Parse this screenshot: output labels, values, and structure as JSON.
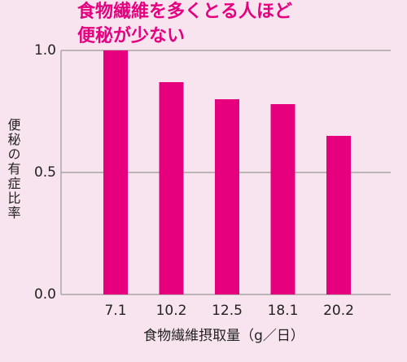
{
  "chart_data": {
    "type": "bar",
    "title": [
      "食物繊維を多くとる人ほど",
      "便秘が少ない"
    ],
    "y_label": "便秘の有症比率",
    "x_label": "食物繊維摂取量（g／日）",
    "categories": [
      "7.1",
      "10.2",
      "12.5",
      "18.1",
      "20.2"
    ],
    "values": [
      1.0,
      0.87,
      0.8,
      0.78,
      0.65
    ],
    "color": "#e6007e",
    "ylim": [
      0,
      1.0
    ],
    "yticks": [
      {
        "value": 0,
        "label": "0.0"
      },
      0.5,
      {
        "value": 1.0,
        "label": "1.0"
      }
    ],
    "grid": true
  }
}
